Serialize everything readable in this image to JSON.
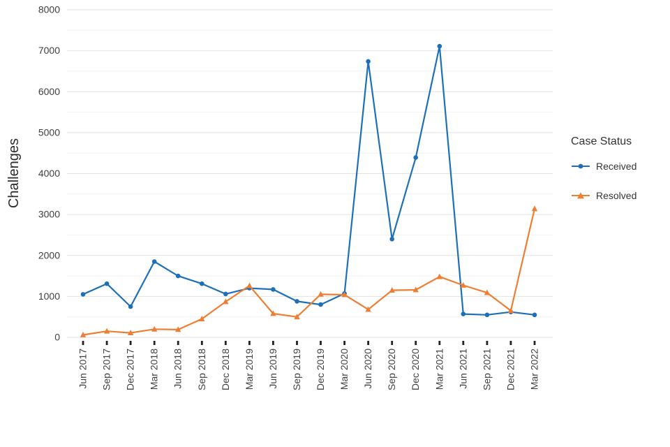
{
  "chart_data": {
    "type": "line",
    "title": "",
    "xlabel": "",
    "ylabel": "Challenges",
    "ylim": [
      0,
      8000
    ],
    "ytick_step": 1000,
    "grid": true,
    "legend_position": "right",
    "legend_title": "Case Status",
    "categories": [
      "Jun 2017",
      "Sep 2017",
      "Dec 2017",
      "Mar 2018",
      "Jun 2018",
      "Sep 2018",
      "Dec 2018",
      "Mar 2019",
      "Jun 2019",
      "Sep 2019",
      "Dec 2019",
      "Mar 2020",
      "Jun 2020",
      "Sep 2020",
      "Dec 2020",
      "Mar 2021",
      "Jun 2021",
      "Sep 2021",
      "Dec 2021",
      "Mar 2022"
    ],
    "series": [
      {
        "name": "Received",
        "marker": "circle",
        "color": "#1d70b8",
        "values": [
          1050,
          1310,
          750,
          1850,
          1500,
          1310,
          1060,
          1200,
          1170,
          880,
          800,
          1070,
          6740,
          2400,
          4390,
          7110,
          570,
          550,
          620,
          550
        ]
      },
      {
        "name": "Resolved",
        "marker": "triangle",
        "color": "#ee7e33",
        "values": [
          60,
          150,
          110,
          200,
          190,
          450,
          870,
          1260,
          580,
          500,
          1050,
          1040,
          680,
          1150,
          1160,
          1480,
          1270,
          1090,
          650,
          3140
        ]
      }
    ]
  }
}
